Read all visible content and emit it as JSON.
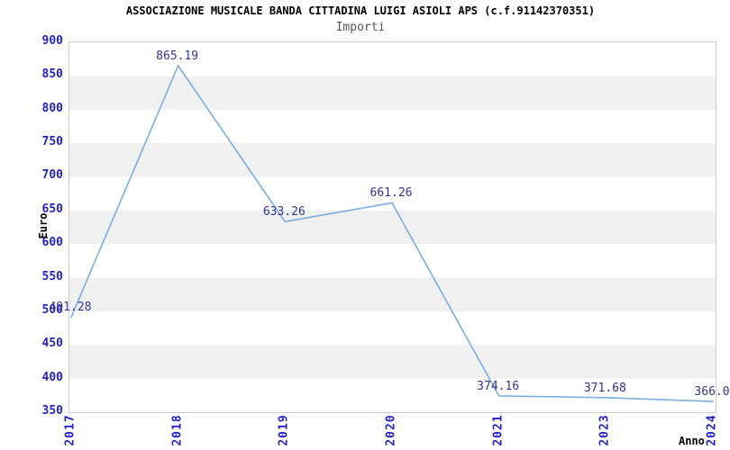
{
  "chart_data": {
    "type": "line",
    "title": "ASSOCIAZIONE MUSICALE BANDA CITTADINA LUIGI ASIOLI APS (c.f.91142370351)",
    "subtitle": "Importi",
    "xlabel": "Anno",
    "ylabel": "Euro",
    "categories": [
      "2017",
      "2018",
      "2019",
      "2020",
      "2021",
      "2023",
      "2024"
    ],
    "series": [
      {
        "name": "Importi",
        "values": [
          491.28,
          865.19,
          633.26,
          661.26,
          374.16,
          371.68,
          366.0
        ],
        "point_labels": [
          "491.28",
          "865.19",
          "633.26",
          "661.26",
          "374.16",
          "371.68",
          "366.0"
        ]
      }
    ],
    "ylim": [
      350,
      900
    ],
    "yticks": [
      900,
      850,
      800,
      750,
      700,
      650,
      600,
      550,
      500,
      450,
      400,
      350
    ],
    "grid": "alternating-horizontal-bands",
    "legend_position": "none",
    "markers": "none",
    "colors": {
      "line": "#7aaee4",
      "tick_label": "#2222cc",
      "point_label": "#333399",
      "band": "#f0f0f0",
      "plot_border": "#cccccc",
      "title": "#000000",
      "subtitle": "#555555",
      "axis_label": "#000000",
      "background": "#ffffff"
    }
  }
}
